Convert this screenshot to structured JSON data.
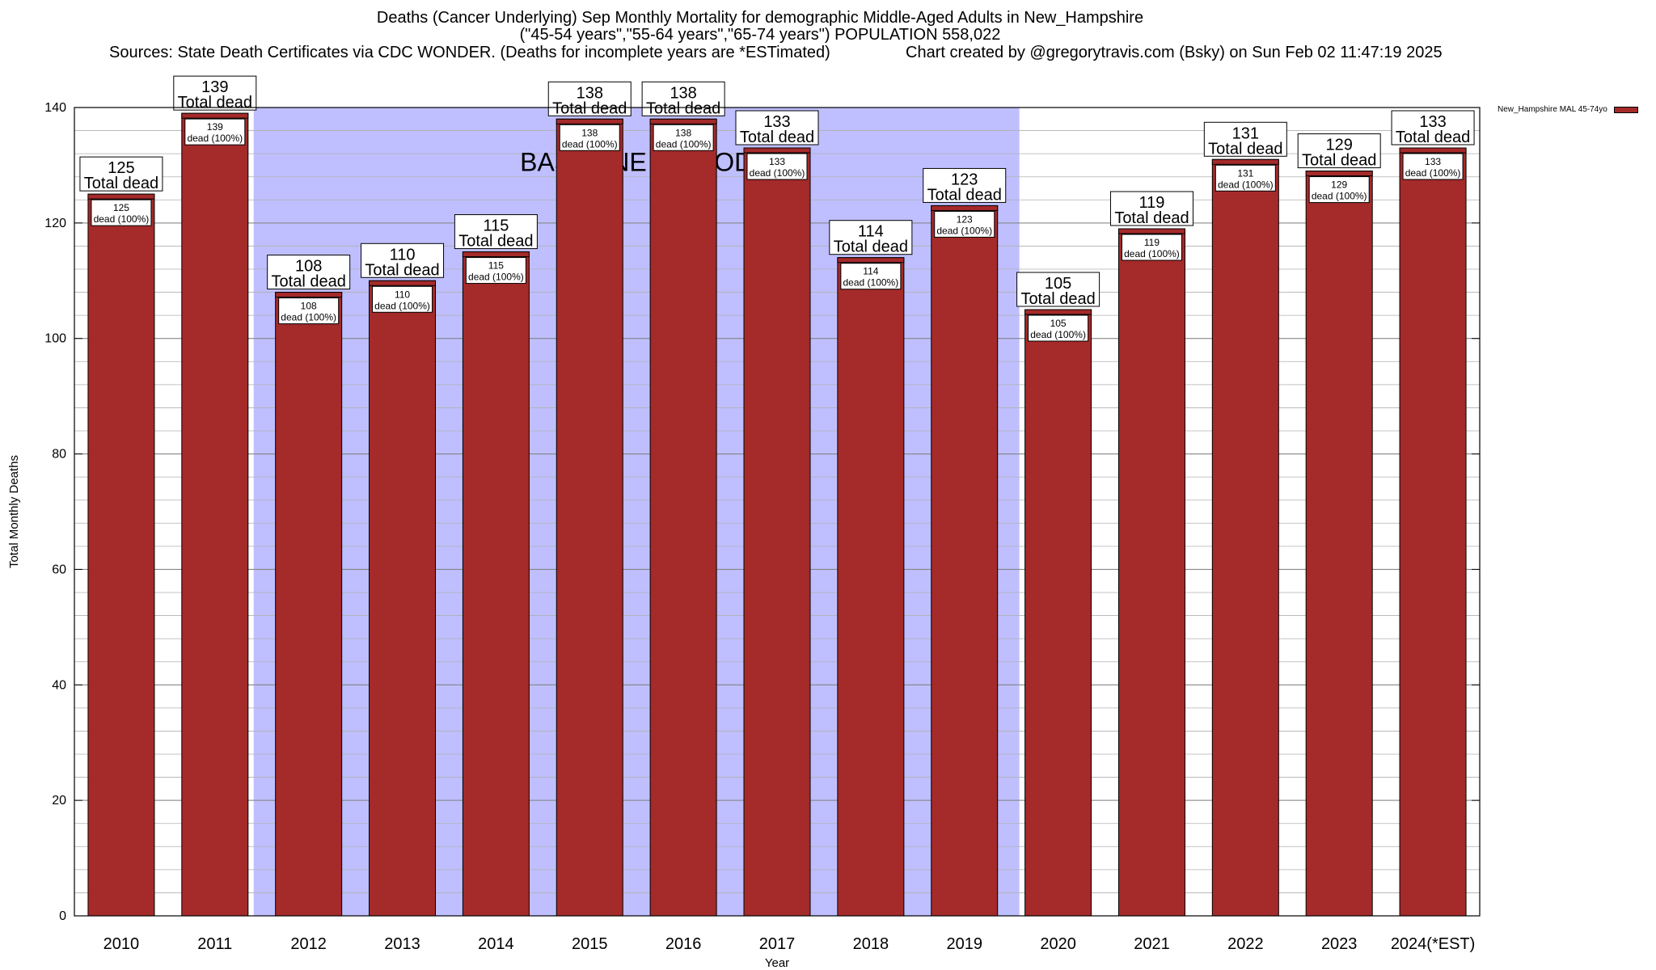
{
  "chart_data": {
    "type": "bar",
    "title": "Deaths (Cancer Underlying) Sep Monthly Mortality for demographic Middle-Aged Adults in New_Hampshire",
    "subtitle": "(\"45-54 years\",\"55-64 years\",\"65-74 years\") POPULATION 558,022",
    "sources": "Sources: State Death Certificates via CDC WONDER. (Deaths for incomplete years are *ESTimated)",
    "credit": "Chart created by @gregorytravis.com (Bsky) on Sun Feb 02 11:47:19 2025",
    "xlabel": "Year",
    "ylabel": "Total Monthly Deaths",
    "ylim": [
      0,
      140
    ],
    "yticks": [
      0,
      20,
      40,
      60,
      80,
      100,
      120,
      140
    ],
    "grid": true,
    "legend_placement": "top-right",
    "categories": [
      "2010",
      "2011",
      "2012",
      "2013",
      "2014",
      "2015",
      "2016",
      "2017",
      "2018",
      "2019",
      "2020",
      "2021",
      "2022",
      "2023",
      "2024(*EST)"
    ],
    "series": [
      {
        "name": "New_Hampshire MAL 45-74yo",
        "color": "#a52a2a",
        "values": [
          125,
          139,
          108,
          110,
          115,
          138,
          138,
          133,
          114,
          123,
          105,
          119,
          131,
          129,
          133
        ]
      }
    ],
    "bar_top_label": "Total dead",
    "bar_inner_label": "dead (100%)",
    "baseline_period": {
      "label": "BASELINE PERIOD",
      "start": "2012",
      "end": "2019",
      "color": "#bfbfff"
    }
  }
}
